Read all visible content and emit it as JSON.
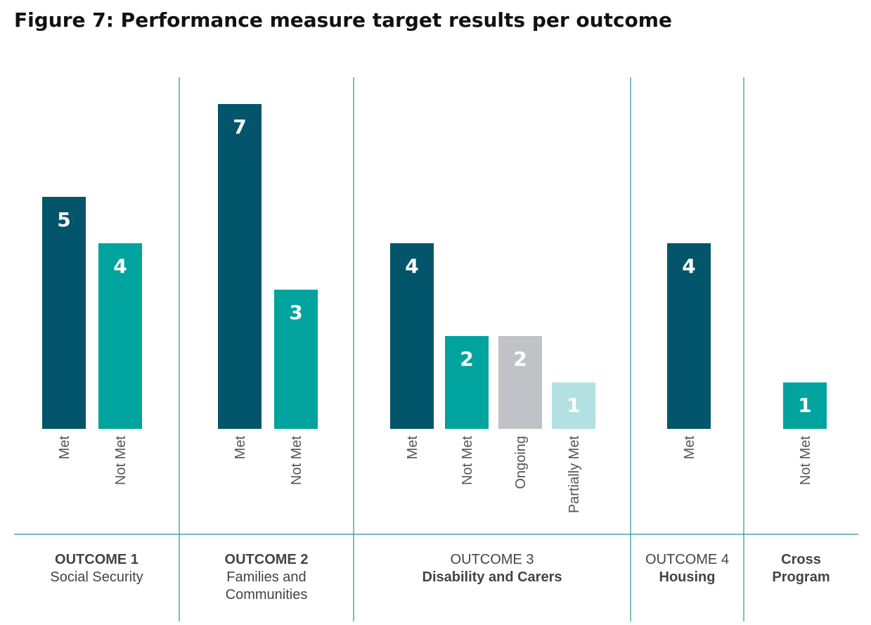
{
  "chart_data": {
    "type": "bar",
    "title": "Figure 7: Performance measure target results per outcome",
    "colors": {
      "Met": "#02556a",
      "Not Met": "#00a39e",
      "Ongoing": "#c1c1c8",
      "Partially Met": "#b3e1e1",
      "divider": "#2a8f96"
    },
    "groups": [
      {
        "label_lines": [
          {
            "text": "OUTCOME 1",
            "bold": true
          },
          {
            "text": "Social Security",
            "bold": false
          }
        ],
        "bars": [
          {
            "category": "Met",
            "value": 5
          },
          {
            "category": "Not Met",
            "value": 4
          }
        ]
      },
      {
        "label_lines": [
          {
            "text": "OUTCOME 2",
            "bold": true
          },
          {
            "text": "Families and",
            "bold": false
          },
          {
            "text": "Communities",
            "bold": false
          }
        ],
        "bars": [
          {
            "category": "Met",
            "value": 7
          },
          {
            "category": "Not Met",
            "value": 3
          }
        ]
      },
      {
        "label_lines": [
          {
            "text": "OUTCOME 3",
            "bold": false
          },
          {
            "text": "Disability and Carers",
            "bold": true
          }
        ],
        "bars": [
          {
            "category": "Met",
            "value": 4
          },
          {
            "category": "Not Met",
            "value": 2
          },
          {
            "category": "Ongoing",
            "value": 2
          },
          {
            "category": "Partially Met",
            "value": 1
          }
        ]
      },
      {
        "label_lines": [
          {
            "text": "OUTCOME 4",
            "bold": false
          },
          {
            "text": "Housing",
            "bold": true
          }
        ],
        "bars": [
          {
            "category": "Met",
            "value": 4
          }
        ]
      },
      {
        "label_lines": [
          {
            "text": "Cross",
            "bold": true
          },
          {
            "text": "Program",
            "bold": true
          }
        ],
        "bars": [
          {
            "category": "Not Met",
            "value": 1
          }
        ]
      }
    ],
    "ylim": [
      0,
      7
    ],
    "grid": false,
    "legend": "none"
  }
}
